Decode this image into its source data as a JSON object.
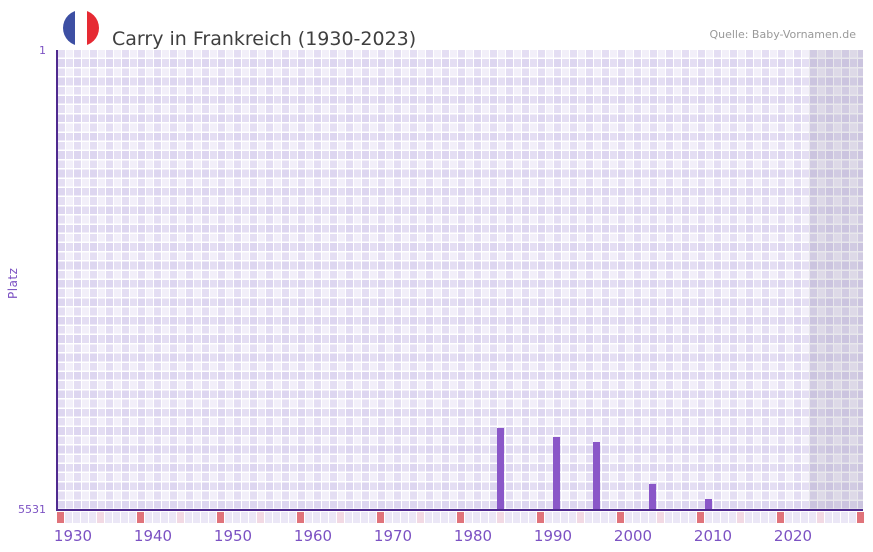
{
  "header": {
    "title": "Carry in Frankreich (1930-2023)",
    "source": "Quelle: Baby-Vornamen.de"
  },
  "chart_data": {
    "type": "bar",
    "title": "Carry in Frankreich (1930-2023)",
    "xlabel": "",
    "ylabel": "Platz",
    "y_axis": {
      "top_label": "1",
      "bottom_label": "5531",
      "min": 1,
      "max": 5531,
      "inverted": true
    },
    "x_axis": {
      "tick_labels": [
        "1930",
        "1940",
        "1950",
        "1960",
        "1970",
        "1980",
        "1990",
        "2000",
        "2010",
        "2020"
      ],
      "range_start": 1930,
      "range_end": 2030,
      "data_end": 2023
    },
    "series": [
      {
        "name": "Platz",
        "points": [
          {
            "year": 1985,
            "rank": 4550
          },
          {
            "year": 1992,
            "rank": 4650
          },
          {
            "year": 1997,
            "rank": 4710
          },
          {
            "year": 2004,
            "rank": 5220
          },
          {
            "year": 2011,
            "rank": 5400
          }
        ]
      }
    ],
    "timeline_strip": {
      "start_year": 1930,
      "cell_count": 101,
      "red_interval": 10,
      "pink_interval": 5
    },
    "legend": "none",
    "grid": "plaid-checker",
    "colors": {
      "bar": "#8a57c8",
      "axis_line": "#4f2a8f",
      "tick_label": "#7c52c3",
      "title_text": "#3f3f3f",
      "source_text": "#999999",
      "grid_base": "#f2eff9",
      "grid_tint": "rgba(214,205,237,0.5)",
      "future_overlay": "rgba(118,112,140,0.17)",
      "strip_base": "#ebe7f6",
      "strip_red": "#e0737a",
      "strip_pink": "#f2d9e3",
      "flag_blue": "#3d4fa3",
      "flag_red": "#e62a33"
    }
  }
}
